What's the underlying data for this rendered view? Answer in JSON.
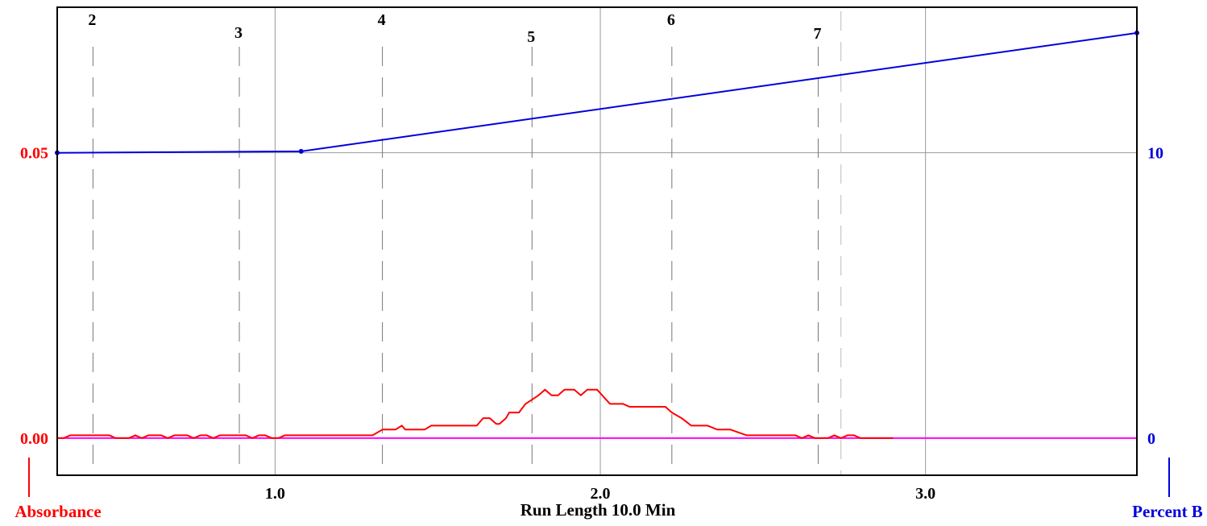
{
  "chart_data": {
    "type": "line",
    "title": "",
    "xlabel": "Run Length 10.0 Min",
    "y_left_label": "Absorbance",
    "y_right_label": "Percent B",
    "xlim": [
      0.33,
      3.65
    ],
    "y_left_lim": [
      -0.0065,
      0.0755
    ],
    "y_right_lim": [
      -1.3,
      15.1
    ],
    "x_ticks": [
      {
        "value": 1.0,
        "label": "1.0"
      },
      {
        "value": 2.0,
        "label": "2.0"
      },
      {
        "value": 3.0,
        "label": "3.0"
      }
    ],
    "y_left_ticks": [
      {
        "value": 0.0,
        "label": "0.00"
      },
      {
        "value": 0.05,
        "label": "0.05"
      }
    ],
    "y_right_ticks": [
      {
        "value": 0,
        "label": "0"
      },
      {
        "value": 10,
        "label": "10"
      }
    ],
    "fraction_markers": [
      {
        "x": 0.44,
        "label": "2"
      },
      {
        "x": 0.89,
        "label": "3"
      },
      {
        "x": 1.33,
        "label": "4"
      },
      {
        "x": 1.79,
        "label": "5"
      },
      {
        "x": 2.22,
        "label": "6"
      },
      {
        "x": 2.67,
        "label": "7"
      },
      {
        "x": 2.74,
        "label": ""
      }
    ],
    "series": [
      {
        "color": "#ff0000",
        "axis": "left",
        "points": [
          [
            0.33,
            0.0
          ],
          [
            0.35,
            0.0
          ],
          [
            0.37,
            0.0005
          ],
          [
            0.39,
            0.0005
          ],
          [
            0.41,
            0.0005
          ],
          [
            0.43,
            0.0005
          ],
          [
            0.45,
            0.0005
          ],
          [
            0.47,
            0.0005
          ],
          [
            0.49,
            0.0005
          ],
          [
            0.51,
            0.0
          ],
          [
            0.53,
            0.0
          ],
          [
            0.55,
            0.0
          ],
          [
            0.57,
            0.0005
          ],
          [
            0.59,
            0.0
          ],
          [
            0.61,
            0.0005
          ],
          [
            0.63,
            0.0005
          ],
          [
            0.65,
            0.0005
          ],
          [
            0.67,
            0.0
          ],
          [
            0.69,
            0.0005
          ],
          [
            0.71,
            0.0005
          ],
          [
            0.73,
            0.0005
          ],
          [
            0.75,
            0.0
          ],
          [
            0.77,
            0.0005
          ],
          [
            0.79,
            0.0005
          ],
          [
            0.81,
            0.0
          ],
          [
            0.83,
            0.0005
          ],
          [
            0.85,
            0.0005
          ],
          [
            0.87,
            0.0005
          ],
          [
            0.89,
            0.0005
          ],
          [
            0.91,
            0.0005
          ],
          [
            0.93,
            0.0
          ],
          [
            0.95,
            0.0005
          ],
          [
            0.97,
            0.0005
          ],
          [
            0.99,
            0.0
          ],
          [
            1.01,
            0.0
          ],
          [
            1.03,
            0.0005
          ],
          [
            1.05,
            0.0005
          ],
          [
            1.1,
            0.0005
          ],
          [
            1.2,
            0.0005
          ],
          [
            1.3,
            0.0005
          ],
          [
            1.33,
            0.0015
          ],
          [
            1.36,
            0.0015
          ],
          [
            1.37,
            0.0015
          ],
          [
            1.39,
            0.0022
          ],
          [
            1.4,
            0.0015
          ],
          [
            1.44,
            0.0015
          ],
          [
            1.46,
            0.0015
          ],
          [
            1.48,
            0.0022
          ],
          [
            1.52,
            0.0022
          ],
          [
            1.58,
            0.0022
          ],
          [
            1.6,
            0.0022
          ],
          [
            1.62,
            0.0022
          ],
          [
            1.64,
            0.0035
          ],
          [
            1.66,
            0.0035
          ],
          [
            1.68,
            0.0025
          ],
          [
            1.69,
            0.0025
          ],
          [
            1.71,
            0.0035
          ],
          [
            1.72,
            0.0045
          ],
          [
            1.74,
            0.0045
          ],
          [
            1.75,
            0.0045
          ],
          [
            1.77,
            0.006
          ],
          [
            1.81,
            0.0075
          ],
          [
            1.83,
            0.0085
          ],
          [
            1.85,
            0.0075
          ],
          [
            1.87,
            0.0075
          ],
          [
            1.89,
            0.0085
          ],
          [
            1.92,
            0.0085
          ],
          [
            1.94,
            0.0075
          ],
          [
            1.96,
            0.0085
          ],
          [
            1.99,
            0.0085
          ],
          [
            2.03,
            0.006
          ],
          [
            2.07,
            0.006
          ],
          [
            2.09,
            0.0055
          ],
          [
            2.15,
            0.0055
          ],
          [
            2.18,
            0.0055
          ],
          [
            2.2,
            0.0055
          ],
          [
            2.22,
            0.0045
          ],
          [
            2.25,
            0.0035
          ],
          [
            2.28,
            0.0022
          ],
          [
            2.3,
            0.0022
          ],
          [
            2.33,
            0.0022
          ],
          [
            2.36,
            0.0015
          ],
          [
            2.4,
            0.0015
          ],
          [
            2.45,
            0.0005
          ],
          [
            2.5,
            0.0005
          ],
          [
            2.55,
            0.0005
          ],
          [
            2.6,
            0.0005
          ],
          [
            2.62,
            0.0
          ],
          [
            2.64,
            0.0005
          ],
          [
            2.66,
            0.0
          ],
          [
            2.68,
            0.0
          ],
          [
            2.7,
            0.0
          ],
          [
            2.72,
            0.0005
          ],
          [
            2.74,
            0.0
          ],
          [
            2.76,
            0.0005
          ],
          [
            2.78,
            0.0005
          ],
          [
            2.8,
            0.0
          ],
          [
            2.85,
            0.0
          ],
          [
            2.9,
            0.0
          ]
        ]
      },
      {
        "color": "#0000dd",
        "axis": "right",
        "points": [
          [
            0.33,
            10.0
          ],
          [
            1.08,
            10.05
          ],
          [
            3.65,
            14.2
          ]
        ]
      },
      {
        "color": "#ff00ff",
        "axis": "left",
        "points": [
          [
            0.33,
            0.0
          ],
          [
            3.65,
            0.0
          ]
        ]
      }
    ],
    "grid": true,
    "legend": "none",
    "colors": {
      "absorbance": "#ff0000",
      "percent_b": "#0000dd",
      "baseline": "#ff00ff",
      "grid": "#999999",
      "marker": "#777777",
      "frame": "#000000"
    }
  }
}
